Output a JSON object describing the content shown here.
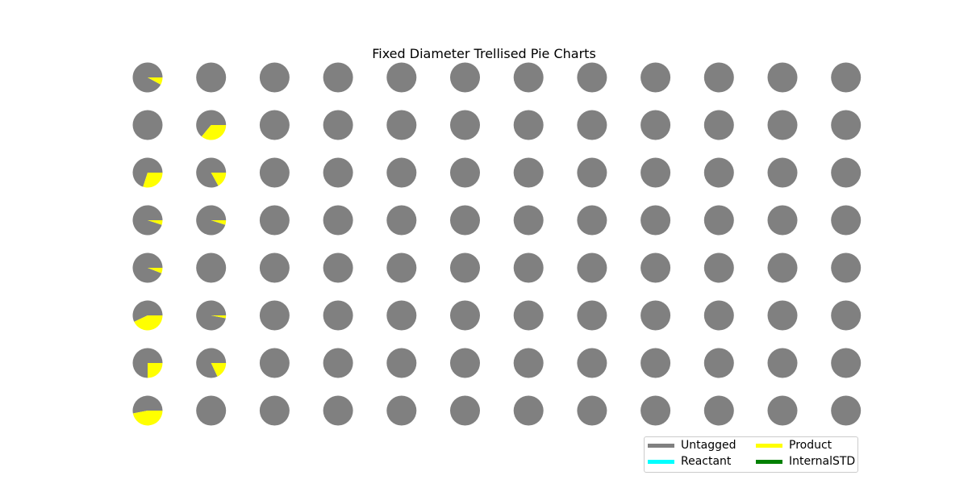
{
  "chart_data": {
    "type": "pie",
    "title": "Fixed Diameter Trellised Pie Charts",
    "layout": "trellis",
    "grid_rows": 8,
    "grid_cols": 12,
    "categories": [
      "Untagged",
      "Reactant",
      "Product",
      "InternalSTD"
    ],
    "colors": {
      "Untagged": "#808080",
      "Reactant": "#00ffff",
      "Product": "#ffff00",
      "InternalSTD": "#008000"
    },
    "legend_placement": "lower-right",
    "note_slices": "each pie lists fractions for [Untagged, Reactant, Product, InternalSTD]; wedges drawn counterclockwise starting at 0 degrees (east)",
    "pies": [
      [
        [
          0.92,
          0,
          0.08,
          0
        ],
        [
          1,
          0,
          0,
          0
        ],
        [
          1,
          0,
          0,
          0
        ],
        [
          1,
          0,
          0,
          0
        ],
        [
          1,
          0,
          0,
          0
        ],
        [
          1,
          0,
          0,
          0
        ],
        [
          1,
          0,
          0,
          0
        ],
        [
          1,
          0,
          0,
          0
        ],
        [
          1,
          0,
          0,
          0
        ],
        [
          1,
          0,
          0,
          0
        ],
        [
          1,
          0,
          0,
          0
        ],
        [
          1,
          0,
          0,
          0
        ]
      ],
      [
        [
          1,
          0,
          0,
          0
        ],
        [
          0.64,
          0,
          0.36,
          0
        ],
        [
          1,
          0,
          0,
          0
        ],
        [
          1,
          0,
          0,
          0
        ],
        [
          1,
          0,
          0,
          0
        ],
        [
          1,
          0,
          0,
          0
        ],
        [
          1,
          0,
          0,
          0
        ],
        [
          1,
          0,
          0,
          0
        ],
        [
          1,
          0,
          0,
          0
        ],
        [
          1,
          0,
          0,
          0
        ],
        [
          1,
          0,
          0,
          0
        ],
        [
          1,
          0,
          0,
          0
        ]
      ],
      [
        [
          0.7,
          0,
          0.3,
          0
        ],
        [
          0.83,
          0,
          0.17,
          0
        ],
        [
          1,
          0,
          0,
          0
        ],
        [
          1,
          0,
          0,
          0
        ],
        [
          1,
          0,
          0,
          0
        ],
        [
          1,
          0,
          0,
          0
        ],
        [
          1,
          0,
          0,
          0
        ],
        [
          1,
          0,
          0,
          0
        ],
        [
          1,
          0,
          0,
          0
        ],
        [
          1,
          0,
          0,
          0
        ],
        [
          1,
          0,
          0,
          0
        ],
        [
          1,
          0,
          0,
          0
        ]
      ],
      [
        [
          0.95,
          0,
          0.05,
          0
        ],
        [
          0.95,
          0,
          0.05,
          0
        ],
        [
          1,
          0,
          0,
          0
        ],
        [
          1,
          0,
          0,
          0
        ],
        [
          1,
          0,
          0,
          0
        ],
        [
          1,
          0,
          0,
          0
        ],
        [
          1,
          0,
          0,
          0
        ],
        [
          1,
          0,
          0,
          0
        ],
        [
          1,
          0,
          0,
          0
        ],
        [
          1,
          0,
          0,
          0
        ],
        [
          1,
          0,
          0,
          0
        ],
        [
          1,
          0,
          0,
          0
        ]
      ],
      [
        [
          0.94,
          0,
          0.06,
          0
        ],
        [
          1,
          0,
          0,
          0
        ],
        [
          1,
          0,
          0,
          0
        ],
        [
          1,
          0,
          0,
          0
        ],
        [
          1,
          0,
          0,
          0
        ],
        [
          1,
          0,
          0,
          0
        ],
        [
          1,
          0,
          0,
          0
        ],
        [
          1,
          0,
          0,
          0
        ],
        [
          1,
          0,
          0,
          0
        ],
        [
          1,
          0,
          0,
          0
        ],
        [
          1,
          0,
          0,
          0
        ],
        [
          1,
          0,
          0,
          0
        ]
      ],
      [
        [
          0.57,
          0,
          0.43,
          0
        ],
        [
          0.97,
          0,
          0.03,
          0
        ],
        [
          1,
          0,
          0,
          0
        ],
        [
          1,
          0,
          0,
          0
        ],
        [
          1,
          0,
          0,
          0
        ],
        [
          1,
          0,
          0,
          0
        ],
        [
          1,
          0,
          0,
          0
        ],
        [
          1,
          0,
          0,
          0
        ],
        [
          1,
          0,
          0,
          0
        ],
        [
          1,
          0,
          0,
          0
        ],
        [
          1,
          0,
          0,
          0
        ],
        [
          1,
          0,
          0,
          0
        ]
      ],
      [
        [
          0.75,
          0,
          0.25,
          0
        ],
        [
          0.82,
          0,
          0.18,
          0
        ],
        [
          1,
          0,
          0,
          0
        ],
        [
          1,
          0,
          0,
          0
        ],
        [
          1,
          0,
          0,
          0
        ],
        [
          1,
          0,
          0,
          0
        ],
        [
          1,
          0,
          0,
          0
        ],
        [
          1,
          0,
          0,
          0
        ],
        [
          1,
          0,
          0,
          0
        ],
        [
          1,
          0,
          0,
          0
        ],
        [
          1,
          0,
          0,
          0
        ],
        [
          1,
          0,
          0,
          0
        ]
      ],
      [
        [
          0.53,
          0,
          0.47,
          0
        ],
        [
          1,
          0,
          0,
          0
        ],
        [
          1,
          0,
          0,
          0
        ],
        [
          1,
          0,
          0,
          0
        ],
        [
          1,
          0,
          0,
          0
        ],
        [
          1,
          0,
          0,
          0
        ],
        [
          1,
          0,
          0,
          0
        ],
        [
          1,
          0,
          0,
          0
        ],
        [
          1,
          0,
          0,
          0
        ],
        [
          1,
          0,
          0,
          0
        ],
        [
          1,
          0,
          0,
          0
        ],
        [
          1,
          0,
          0,
          0
        ]
      ]
    ]
  }
}
